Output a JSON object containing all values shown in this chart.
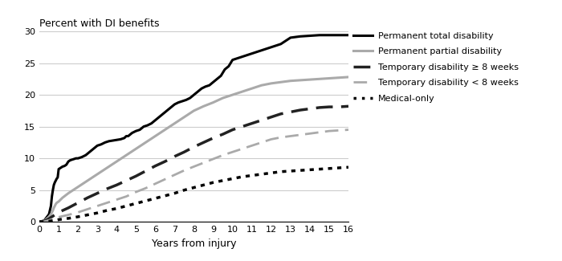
{
  "title": "Percent with DI benefits",
  "xlabel": "Years from injury",
  "xlim": [
    0,
    16
  ],
  "ylim": [
    0,
    30
  ],
  "xticks": [
    0,
    1,
    2,
    3,
    4,
    5,
    6,
    7,
    8,
    9,
    10,
    11,
    12,
    13,
    14,
    15,
    16
  ],
  "yticks": [
    0,
    5,
    10,
    15,
    20,
    25,
    30
  ],
  "series": [
    {
      "label": "Permanent total disability",
      "color": "#000000",
      "linestyle": "solid",
      "linewidth": 2.2,
      "x": [
        0,
        0.25,
        0.5,
        0.6,
        0.65,
        0.7,
        0.75,
        0.8,
        0.85,
        0.9,
        0.95,
        1.0,
        1.1,
        1.2,
        1.3,
        1.4,
        1.5,
        1.6,
        1.7,
        1.8,
        1.9,
        2.0,
        2.2,
        2.4,
        2.6,
        2.8,
        3.0,
        3.2,
        3.4,
        3.6,
        3.8,
        4.0,
        4.2,
        4.4,
        4.5,
        4.6,
        4.8,
        5.0,
        5.2,
        5.4,
        5.6,
        5.8,
        6.0,
        6.2,
        6.4,
        6.6,
        6.8,
        7.0,
        7.2,
        7.4,
        7.6,
        7.8,
        8.0,
        8.2,
        8.4,
        8.6,
        8.8,
        9.0,
        9.2,
        9.4,
        9.6,
        9.8,
        10.0,
        10.5,
        11.0,
        11.5,
        12.0,
        12.5,
        13.0,
        13.5,
        14.0,
        14.5,
        15.0,
        15.5,
        16.0
      ],
      "y": [
        0,
        0.2,
        1.2,
        2.5,
        4.0,
        5.0,
        5.8,
        6.2,
        6.5,
        6.8,
        7.0,
        8.3,
        8.5,
        8.7,
        8.8,
        9.0,
        9.5,
        9.7,
        9.8,
        9.9,
        10.0,
        10.0,
        10.2,
        10.5,
        11.0,
        11.5,
        12.0,
        12.2,
        12.5,
        12.7,
        12.8,
        12.9,
        13.0,
        13.2,
        13.5,
        13.5,
        14.0,
        14.3,
        14.5,
        15.0,
        15.2,
        15.5,
        16.0,
        16.5,
        17.0,
        17.5,
        18.0,
        18.5,
        18.8,
        19.0,
        19.2,
        19.5,
        20.0,
        20.5,
        21.0,
        21.3,
        21.5,
        22.0,
        22.5,
        23.0,
        24.0,
        24.5,
        25.5,
        26.0,
        26.5,
        27.0,
        27.5,
        28.0,
        29.0,
        29.2,
        29.3,
        29.4,
        29.4,
        29.4,
        29.4
      ]
    },
    {
      "label": "Permanent partial disability",
      "color": "#aaaaaa",
      "linestyle": "solid",
      "linewidth": 2.2,
      "x": [
        0,
        0.25,
        0.5,
        0.6,
        0.7,
        0.75,
        0.8,
        0.85,
        0.9,
        0.95,
        1.0,
        1.2,
        1.5,
        2.0,
        2.5,
        3.0,
        3.5,
        4.0,
        4.5,
        5.0,
        5.5,
        6.0,
        6.5,
        7.0,
        7.5,
        8.0,
        8.5,
        9.0,
        9.5,
        10.0,
        10.5,
        11.0,
        11.5,
        12.0,
        12.5,
        13.0,
        13.5,
        14.0,
        14.5,
        15.0,
        15.5,
        16.0
      ],
      "y": [
        0,
        0.15,
        0.8,
        1.2,
        1.8,
        2.2,
        2.5,
        2.8,
        3.0,
        3.1,
        3.2,
        3.8,
        4.5,
        5.5,
        6.5,
        7.5,
        8.5,
        9.5,
        10.5,
        11.5,
        12.5,
        13.5,
        14.5,
        15.5,
        16.5,
        17.5,
        18.2,
        18.8,
        19.5,
        20.0,
        20.5,
        21.0,
        21.5,
        21.8,
        22.0,
        22.2,
        22.3,
        22.4,
        22.5,
        22.6,
        22.7,
        22.8
      ]
    },
    {
      "label": "Temporary disability ≥ 8 weeks",
      "color": "#222222",
      "linestyle": "dashed",
      "linewidth": 2.5,
      "x": [
        0,
        0.25,
        0.5,
        0.75,
        1.0,
        1.5,
        2.0,
        2.5,
        3.0,
        3.5,
        4.0,
        4.5,
        5.0,
        5.5,
        6.0,
        6.5,
        7.0,
        7.5,
        8.0,
        8.5,
        9.0,
        9.5,
        10.0,
        10.5,
        11.0,
        11.5,
        12.0,
        12.5,
        13.0,
        13.5,
        14.0,
        14.5,
        15.0,
        15.5,
        16.0
      ],
      "y": [
        0,
        0.1,
        0.5,
        1.0,
        1.5,
        2.2,
        3.0,
        3.8,
        4.5,
        5.2,
        5.8,
        6.5,
        7.2,
        8.0,
        8.8,
        9.5,
        10.3,
        11.0,
        11.8,
        12.5,
        13.2,
        13.8,
        14.5,
        15.0,
        15.5,
        16.0,
        16.5,
        17.0,
        17.3,
        17.6,
        17.8,
        18.0,
        18.1,
        18.1,
        18.2
      ]
    },
    {
      "label": "Temporary disability < 8 weeks",
      "color": "#aaaaaa",
      "linestyle": "dashed",
      "linewidth": 2.0,
      "x": [
        0,
        0.25,
        0.5,
        0.75,
        1.0,
        1.5,
        2.0,
        2.5,
        3.0,
        3.5,
        4.0,
        4.5,
        5.0,
        5.5,
        6.0,
        6.5,
        7.0,
        7.5,
        8.0,
        8.5,
        9.0,
        9.5,
        10.0,
        10.5,
        11.0,
        11.5,
        12.0,
        12.5,
        13.0,
        13.5,
        14.0,
        14.5,
        15.0,
        15.5,
        16.0
      ],
      "y": [
        0,
        0.05,
        0.25,
        0.5,
        0.75,
        1.1,
        1.5,
        2.0,
        2.5,
        3.0,
        3.5,
        4.0,
        4.7,
        5.3,
        6.0,
        6.7,
        7.4,
        8.1,
        8.7,
        9.3,
        9.9,
        10.5,
        11.0,
        11.5,
        12.0,
        12.5,
        13.0,
        13.3,
        13.5,
        13.7,
        13.9,
        14.1,
        14.3,
        14.4,
        14.5
      ]
    },
    {
      "label": "Medical-only",
      "color": "#000000",
      "linestyle": "dotted",
      "linewidth": 2.5,
      "x": [
        0,
        0.25,
        0.5,
        0.75,
        1.0,
        1.5,
        2.0,
        2.5,
        3.0,
        3.5,
        4.0,
        4.5,
        5.0,
        5.5,
        6.0,
        6.5,
        7.0,
        7.5,
        8.0,
        8.5,
        9.0,
        9.5,
        10.0,
        10.5,
        11.0,
        11.5,
        12.0,
        12.5,
        13.0,
        13.5,
        14.0,
        14.5,
        15.0,
        15.5,
        16.0
      ],
      "y": [
        0,
        0.02,
        0.1,
        0.2,
        0.35,
        0.55,
        0.8,
        1.1,
        1.4,
        1.8,
        2.1,
        2.5,
        2.9,
        3.3,
        3.7,
        4.1,
        4.5,
        5.0,
        5.4,
        5.8,
        6.2,
        6.5,
        6.8,
        7.1,
        7.3,
        7.5,
        7.7,
        7.9,
        8.0,
        8.1,
        8.2,
        8.3,
        8.4,
        8.5,
        8.6
      ]
    }
  ],
  "legend_items": [
    {
      "label": "Permanent total disability",
      "color": "#000000",
      "linestyle": "solid",
      "linewidth": 2.2,
      "dashes": null
    },
    {
      "label": "Permanent partial disability",
      "color": "#aaaaaa",
      "linestyle": "solid",
      "linewidth": 2.2,
      "dashes": null
    },
    {
      "label": "Temporary disability ≥ 8 weeks",
      "color": "#222222",
      "linestyle": "dashed",
      "linewidth": 2.5,
      "dashes": [
        6,
        3
      ]
    },
    {
      "label": "Temporary disability < 8 weeks",
      "color": "#aaaaaa",
      "linestyle": "dashed",
      "linewidth": 2.0,
      "dashes": [
        6,
        3
      ]
    },
    {
      "label": "Medical-only",
      "color": "#000000",
      "linestyle": "dotted",
      "linewidth": 2.5,
      "dashes": [
        1,
        2
      ]
    }
  ],
  "background_color": "#ffffff",
  "grid_color": "#cccccc",
  "title_fontsize": 9,
  "axis_fontsize": 9,
  "tick_fontsize": 8,
  "legend_fontsize": 8
}
